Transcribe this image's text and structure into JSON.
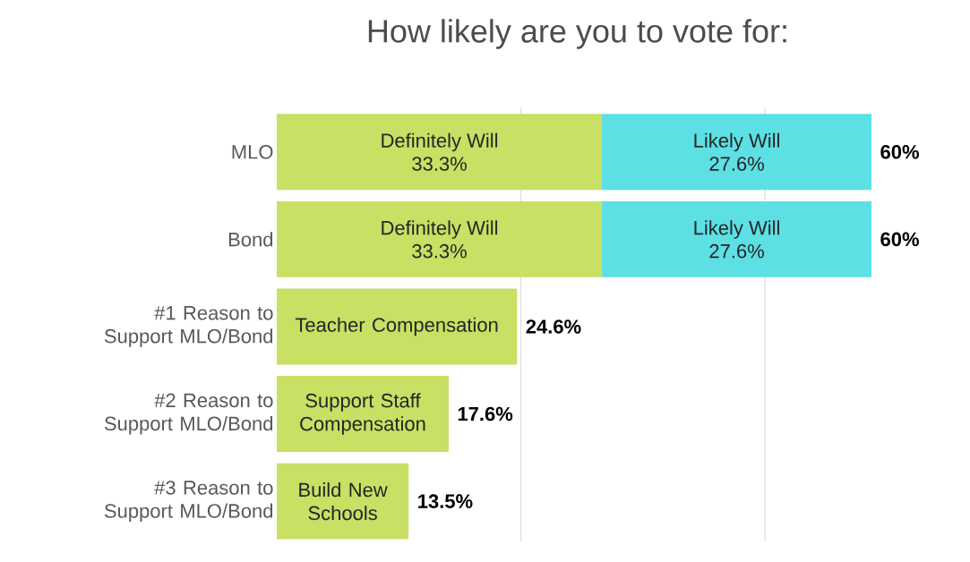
{
  "chart_data": {
    "type": "bar",
    "orientation": "horizontal",
    "stacked": true,
    "title": "How likely are you to vote for:",
    "categories": [
      "MLO",
      "Bond",
      "#1 Reason to Support MLO/Bond",
      "#2 Reason to Support MLO/Bond",
      "#3 Reason to Support MLO/Bond"
    ],
    "series": [
      {
        "name": "Definitely Will",
        "color": "#c8e064",
        "values": [
          33.3,
          33.3,
          24.6,
          17.6,
          13.5
        ],
        "value_labels": [
          "33.3%",
          "33.3%",
          null,
          null,
          null
        ]
      },
      {
        "name": "Likely Will",
        "color": "#5ce0e4",
        "values": [
          27.6,
          27.6,
          null,
          null,
          null
        ],
        "value_labels": [
          "27.6%",
          "27.6%",
          null,
          null,
          null
        ]
      }
    ],
    "totals": [
      "60%",
      "60%",
      "24.6%",
      "17.6%",
      "13.5%"
    ],
    "annotations": [
      {
        "text": "Teacher Compensation",
        "x": 12.3,
        "y": "#1 Reason to Support MLO/Bond"
      },
      {
        "text": "Support Staff Compensation",
        "x": 8.8,
        "y": "#2 Reason to Support MLO/Bond"
      },
      {
        "text": "Build New Schools",
        "x": 6.75,
        "y": "#3 Reason to Support MLO/Bond"
      }
    ],
    "ref_lines": [
      {
        "axis": "x",
        "value": 25,
        "color": "#d9d9d9"
      },
      {
        "axis": "x",
        "value": 50,
        "color": "#d9d9d9"
      }
    ],
    "tick_labels": "y"
  }
}
